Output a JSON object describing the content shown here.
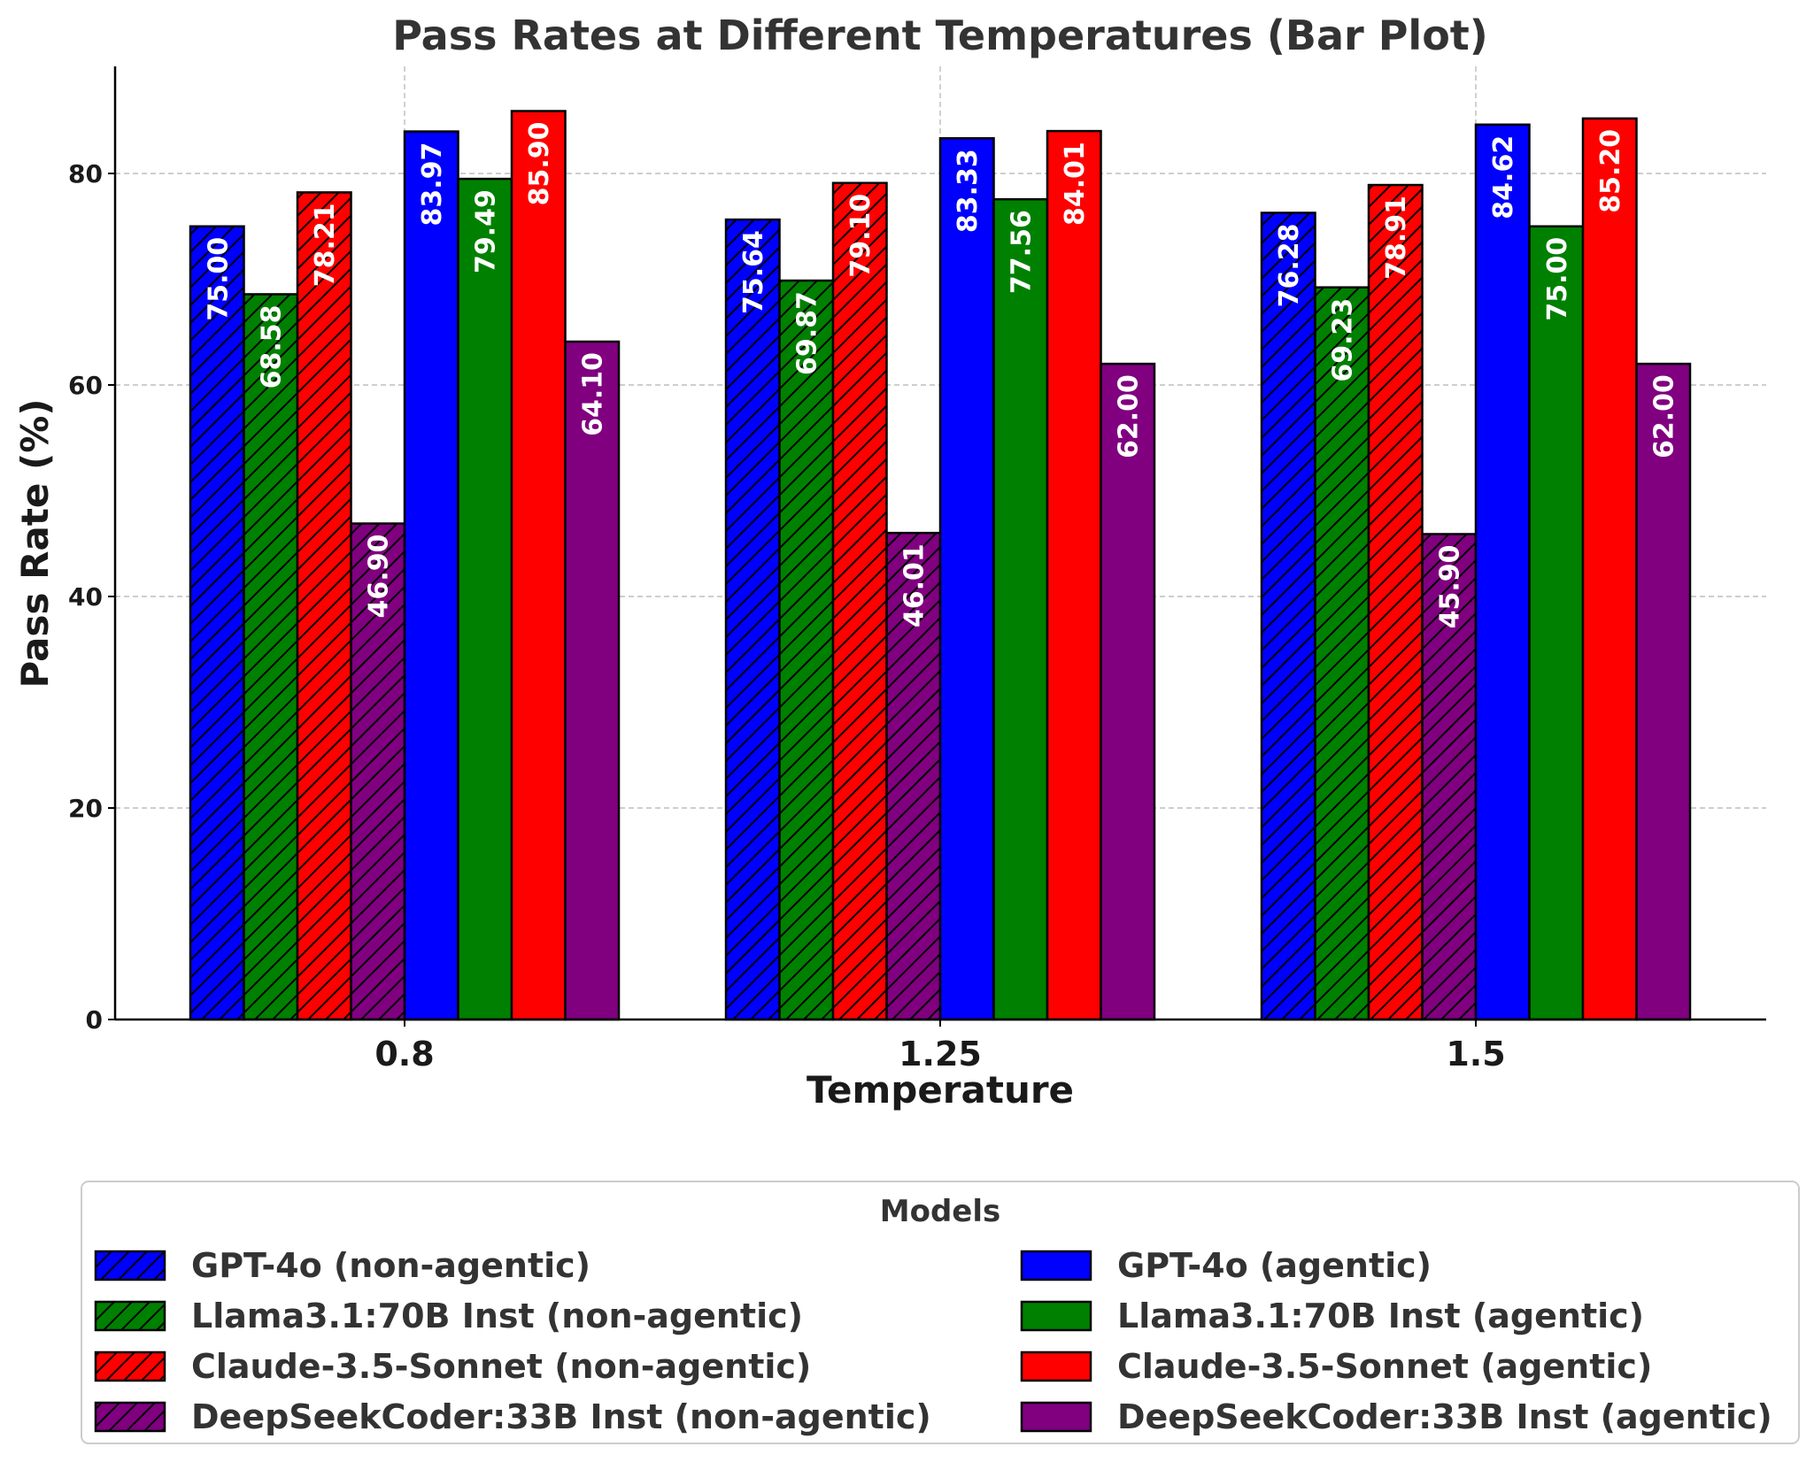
{
  "chart_data": {
    "type": "bar",
    "title": "Pass Rates at Different Temperatures (Bar Plot)",
    "xlabel": "Temperature",
    "ylabel": "Pass Rate (%)",
    "categories": [
      "0.8",
      "1.25",
      "1.5"
    ],
    "ylim": [
      0,
      90
    ],
    "yticks": [
      0,
      20,
      40,
      60,
      80
    ],
    "grid": true,
    "legend_title": "Models",
    "legend_placement": "bottom",
    "series": [
      {
        "name": "GPT-4o (non-agentic)",
        "color": "#0000ff",
        "hatch": true,
        "values": [
          75.0,
          75.64,
          76.28
        ],
        "labels": [
          "75.00",
          "75.64",
          "76.28"
        ]
      },
      {
        "name": "Llama3.1:70B Inst (non-agentic)",
        "color": "#008000",
        "hatch": true,
        "values": [
          68.58,
          69.87,
          69.23
        ],
        "labels": [
          "68.58",
          "69.87",
          "69.23"
        ]
      },
      {
        "name": "Claude-3.5-Sonnet (non-agentic)",
        "color": "#ff0000",
        "hatch": true,
        "values": [
          78.21,
          79.1,
          78.91
        ],
        "labels": [
          "78.21",
          "79.10",
          "78.91"
        ]
      },
      {
        "name": "DeepSeekCoder:33B Inst (non-agentic)",
        "color": "#800080",
        "hatch": true,
        "values": [
          46.9,
          46.01,
          45.9
        ],
        "labels": [
          "46.90",
          "46.01",
          "45.90"
        ]
      },
      {
        "name": "GPT-4o (agentic)",
        "color": "#0000ff",
        "hatch": false,
        "values": [
          83.97,
          83.33,
          84.62
        ],
        "labels": [
          "83.97",
          "83.33",
          "84.62"
        ]
      },
      {
        "name": "Llama3.1:70B Inst (agentic)",
        "color": "#008000",
        "hatch": false,
        "values": [
          79.49,
          77.56,
          75.0
        ],
        "labels": [
          "79.49",
          "77.56",
          "75.00"
        ]
      },
      {
        "name": "Claude-3.5-Sonnet (agentic)",
        "color": "#ff0000",
        "hatch": false,
        "values": [
          85.9,
          84.01,
          85.2
        ],
        "labels": [
          "85.90",
          "84.01",
          "85.20"
        ]
      },
      {
        "name": "DeepSeekCoder:33B Inst (agentic)",
        "color": "#800080",
        "hatch": false,
        "values": [
          64.1,
          62.0,
          62.0
        ],
        "labels": [
          "64.10",
          "62.00",
          "62.00"
        ]
      }
    ]
  }
}
